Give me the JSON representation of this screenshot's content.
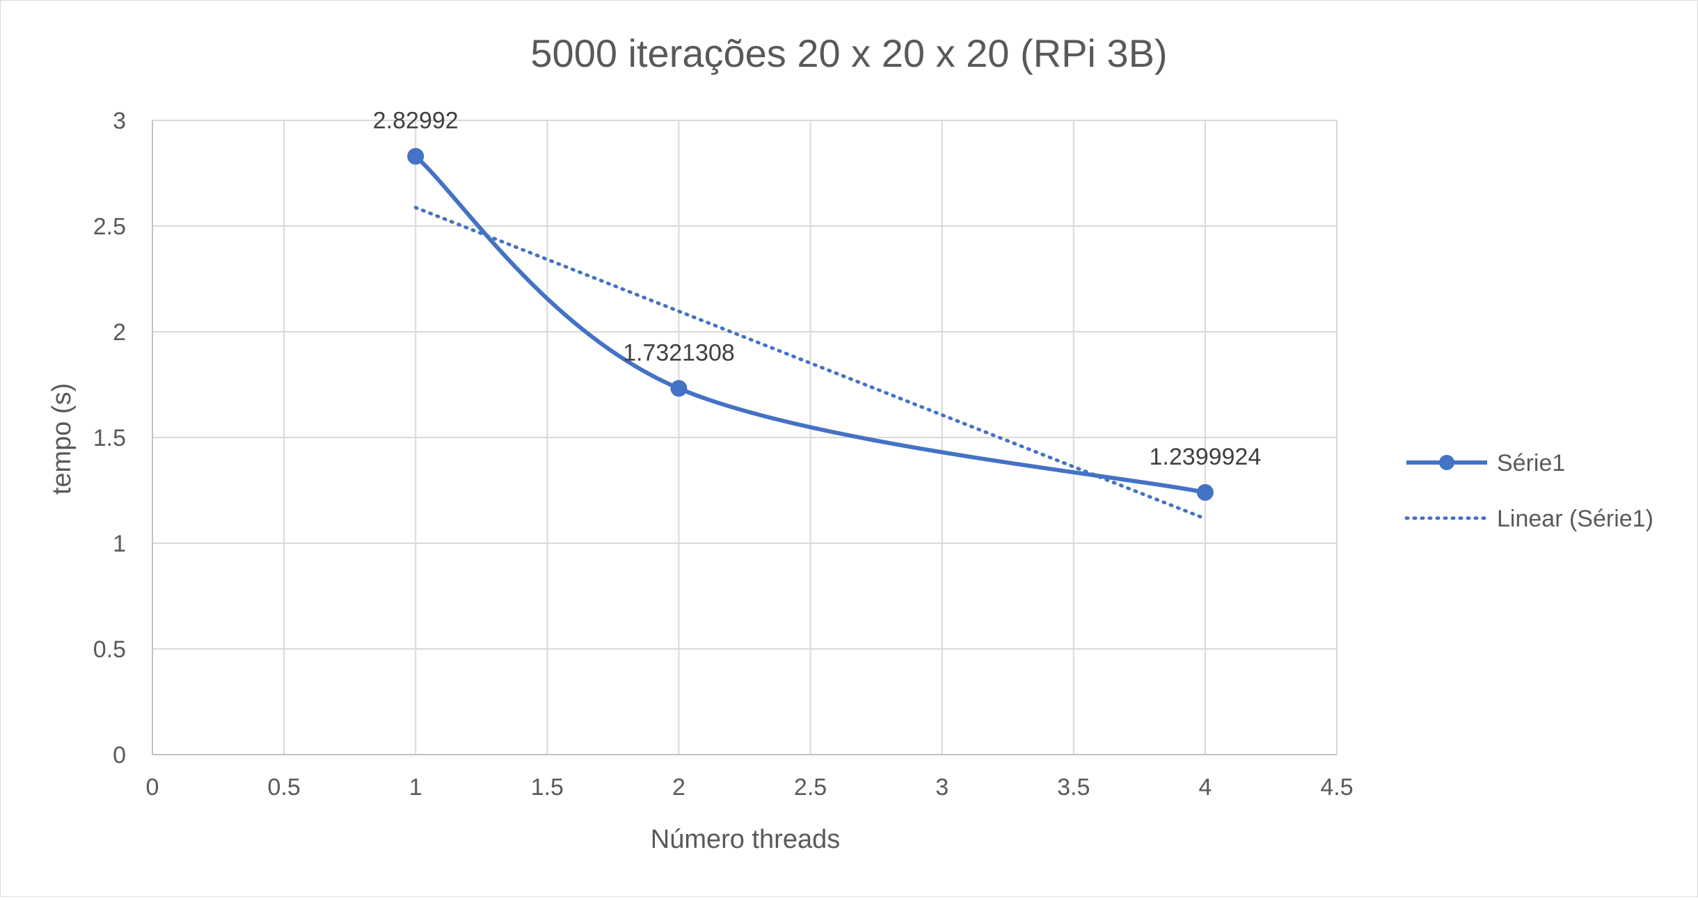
{
  "chart_data": {
    "type": "scatter",
    "title": "5000 iterações 20 x 20 x 20 (RPi 3B)",
    "xlabel": "Número threads",
    "ylabel": "tempo (s)",
    "xlim": [
      0,
      4.5
    ],
    "ylim": [
      0,
      3
    ],
    "x_ticks": [
      0,
      0.5,
      1,
      1.5,
      2,
      2.5,
      3,
      3.5,
      4,
      4.5
    ],
    "y_ticks": [
      0,
      0.5,
      1,
      1.5,
      2,
      2.5,
      3
    ],
    "x_tick_labels": [
      "0",
      "0.5",
      "1",
      "1.5",
      "2",
      "2.5",
      "3",
      "3.5",
      "4",
      "4.5"
    ],
    "y_tick_labels": [
      "0",
      "0.5",
      "1",
      "1.5",
      "2",
      "2.5",
      "3"
    ],
    "grid": true,
    "legend_position": "right",
    "series": [
      {
        "name": "Série1",
        "style": "smoothed line with markers",
        "color": "#4472C4",
        "x": [
          1,
          2,
          4
        ],
        "y": [
          2.82992,
          1.7321308,
          1.2399924
        ],
        "data_labels": [
          "2.82992",
          "1.7321308",
          "1.2399924"
        ]
      },
      {
        "name": "Linear (Série1)",
        "style": "dotted trendline",
        "color": "#4472C4",
        "x": [
          1,
          4
        ],
        "y": [
          2.5874,
          1.1162
        ]
      }
    ]
  }
}
